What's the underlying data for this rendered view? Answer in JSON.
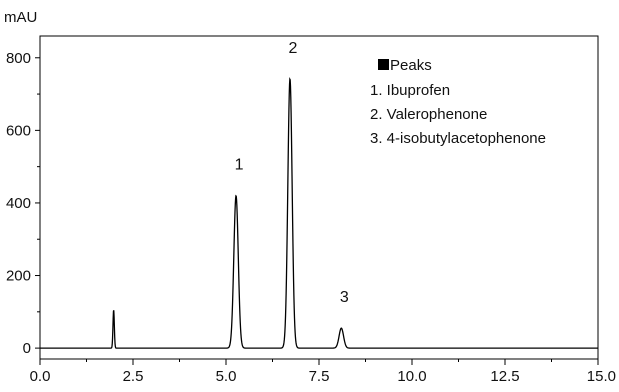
{
  "chart_data": {
    "type": "line",
    "ylabel": "mAU",
    "xlabel": "",
    "xlim": [
      0,
      15
    ],
    "ylim": [
      -30,
      860
    ],
    "x_ticks": [
      "0.0",
      "2.5",
      "5.0",
      "7.5",
      "10.0",
      "12.5",
      "15.0"
    ],
    "x_tick_values": [
      0,
      2.5,
      5,
      7.5,
      10,
      12.5,
      15
    ],
    "y_ticks": [
      "0",
      "200",
      "400",
      "600",
      "800"
    ],
    "y_tick_values": [
      0,
      200,
      400,
      600,
      800
    ],
    "grid": false,
    "legend_position": "top-right",
    "legend": {
      "title": "Peaks",
      "entries": [
        "1. Ibuprofen",
        "2. Valerophenone",
        "3. 4-isobutylacetophenone"
      ]
    },
    "peaks": [
      {
        "label": "1",
        "x": 5.27,
        "y": 420,
        "width": 0.06
      },
      {
        "label": "2",
        "x": 6.72,
        "y": 742,
        "width": 0.058
      },
      {
        "label": "3",
        "x": 8.1,
        "y": 55,
        "width": 0.06
      }
    ],
    "minor_peaks": [
      {
        "x": 1.98,
        "y": 106,
        "width": 0.018
      }
    ],
    "baseline": 0,
    "line_color": "#000000"
  }
}
